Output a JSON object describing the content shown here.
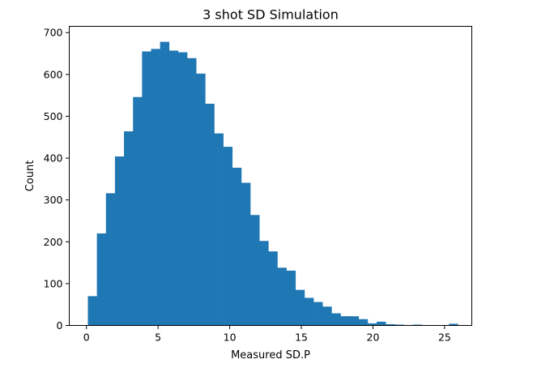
{
  "chart_data": {
    "type": "bar",
    "title": "3 shot SD Simulation",
    "xlabel": "Measured SD.P",
    "ylabel": "Count",
    "xlim": [
      -1.2,
      26.9
    ],
    "ylim": [
      0,
      715
    ],
    "xticks": [
      0,
      5,
      10,
      15,
      20,
      25
    ],
    "yticks": [
      0,
      100,
      200,
      300,
      400,
      500,
      600,
      700
    ],
    "grid": false,
    "bar_color": "#1f77b4",
    "bin_start": 0.1,
    "bin_width": 0.63,
    "values": [
      70,
      220,
      316,
      404,
      464,
      546,
      655,
      661,
      678,
      657,
      653,
      639,
      602,
      530,
      459,
      427,
      377,
      341,
      264,
      202,
      177,
      138,
      131,
      85,
      66,
      56,
      45,
      29,
      22,
      22,
      15,
      5,
      9,
      3,
      2,
      1,
      2,
      0,
      0,
      1,
      4
    ]
  }
}
